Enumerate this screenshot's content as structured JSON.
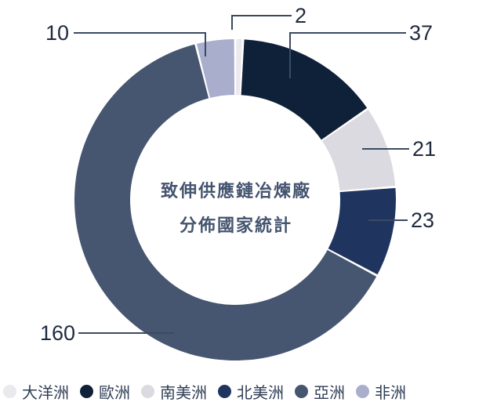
{
  "chart_data": {
    "type": "pie",
    "variant": "donut",
    "center_label": [
      "致伸供應鏈冶煉廠",
      "分佈國家統計"
    ],
    "categories": [
      "大洋洲",
      "歐洲",
      "南美洲",
      "北美洲",
      "亞洲",
      "非洲"
    ],
    "values": [
      2,
      37,
      21,
      23,
      160,
      10
    ],
    "colors": [
      "#e9e9ee",
      "#0f2039",
      "#dadae0",
      "#1f3560",
      "#465670",
      "#a8aecb"
    ],
    "data_labels": [
      "2",
      "37",
      "21",
      "23",
      "160",
      "10"
    ],
    "legend_position": "bottom"
  }
}
